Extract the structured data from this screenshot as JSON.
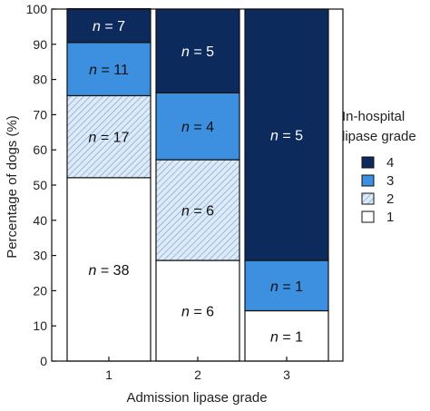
{
  "chart_data": {
    "type": "bar",
    "stacked": true,
    "normalized_percent": true,
    "categories": [
      "1",
      "2",
      "3"
    ],
    "xlabel": "Admission lipase grade",
    "ylabel": "Percentage of dogs (%)",
    "ylim": [
      0,
      100
    ],
    "yticks": [
      0,
      10,
      20,
      30,
      40,
      50,
      60,
      70,
      80,
      90,
      100
    ],
    "grid": false,
    "legend": {
      "title_line1": "In-hospital",
      "title_line2": "lipase grade",
      "placement": "right",
      "entries": [
        "4",
        "3",
        "2",
        "1"
      ]
    },
    "series": [
      {
        "name": "1",
        "counts": [
          38,
          6,
          1
        ],
        "percent": [
          52.1,
          28.6,
          14.3
        ],
        "fill": "#ffffff",
        "pattern": "none",
        "label_color": "#111111"
      },
      {
        "name": "2",
        "counts": [
          17,
          6,
          0
        ],
        "percent": [
          23.3,
          28.6,
          0
        ],
        "fill": "#d6e6f5",
        "pattern": "hatch",
        "label_color": "#111111"
      },
      {
        "name": "3",
        "counts": [
          11,
          4,
          1
        ],
        "percent": [
          15.1,
          19.0,
          14.3
        ],
        "fill": "#3d8fe0",
        "pattern": "none",
        "label_color": "#111111"
      },
      {
        "name": "4",
        "counts": [
          7,
          5,
          5
        ],
        "percent": [
          9.6,
          23.8,
          71.4
        ],
        "fill": "#0d2a5c",
        "pattern": "none",
        "label_color": "#ffffff"
      }
    ],
    "label_prefix": "n",
    "label_sep": " = "
  }
}
